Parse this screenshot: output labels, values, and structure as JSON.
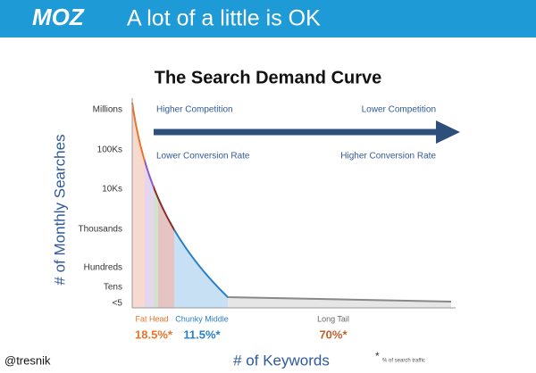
{
  "header": {
    "logo": "MOZ",
    "title": "A lot of a little is OK"
  },
  "diagram": {
    "title": "The Search Demand Curve",
    "y_axis_label": "# of Monthly Searches",
    "y_levels": [
      "Millions",
      "100Ks",
      "10Ks",
      "Thousands",
      "Hundreds",
      "Tens",
      "<5"
    ],
    "x_axis_label": "# of Keywords",
    "annotations": {
      "top_left": "Higher Competition",
      "top_right": "Lower Competition",
      "bottom_left": "Lower Conversion Rate",
      "bottom_right": "Higher Conversion Rate"
    },
    "segments": [
      {
        "label": "Fat Head",
        "share": "18.5%*"
      },
      {
        "label": "Chunky Middle",
        "share": "11.5%*"
      },
      {
        "label": "Long Tail",
        "share": "70%*"
      }
    ],
    "footnote": "% of search traffic"
  },
  "author": "@tresnik"
}
